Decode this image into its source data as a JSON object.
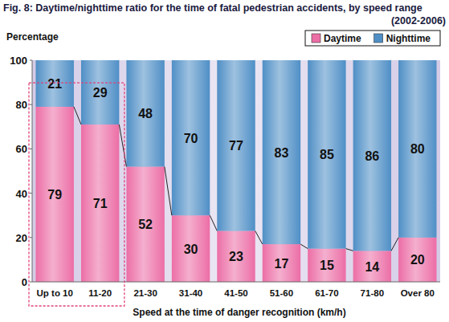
{
  "chart_data": {
    "type": "bar",
    "title": "Fig. 8: Daytime/nighttime ratio for the time of fatal pedestrian accidents, by speed range",
    "subtitle": "(2002-2006)",
    "y_label": "Percentage",
    "x_label": "Speed at the time of danger recognition (km/h)",
    "categories": [
      "Up to 10",
      "11-20",
      "21-30",
      "31-40",
      "41-50",
      "51-60",
      "61-70",
      "71-80",
      "Over 80"
    ],
    "series": [
      {
        "name": "Daytime",
        "color": "#ec6ea6",
        "values": [
          79,
          71,
          52,
          30,
          23,
          17,
          15,
          14,
          20
        ]
      },
      {
        "name": "Nighttime",
        "color": "#4f8fc6",
        "values": [
          21,
          29,
          48,
          70,
          77,
          83,
          85,
          86,
          80
        ]
      }
    ],
    "ylim": [
      0,
      100
    ],
    "yticks": [
      0,
      20,
      40,
      60,
      80,
      100
    ],
    "stacked": true,
    "data_labels": true,
    "grid": false,
    "legend": "upper right"
  }
}
